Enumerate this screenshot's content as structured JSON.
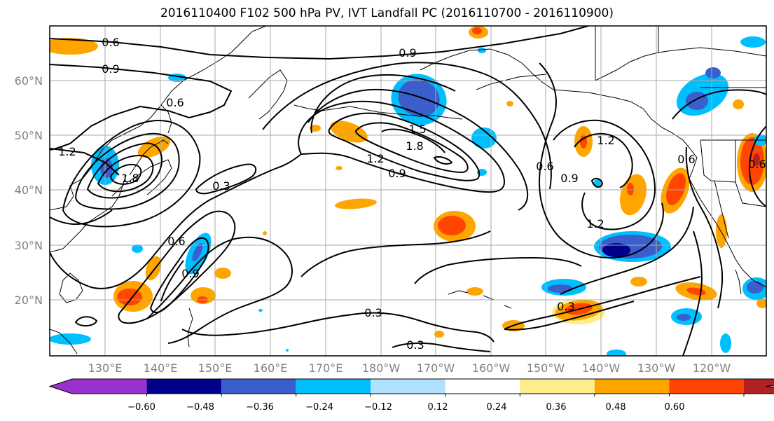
{
  "title": "2016110400 F102 500 hPa PV, IVT Landfall PC (2016110700 - 2016110900)",
  "map": {
    "lat_ticks": [
      "60°N",
      "50°N",
      "40°N",
      "30°N",
      "20°N"
    ],
    "lon_ticks": [
      "130°E",
      "140°E",
      "150°E",
      "160°E",
      "170°E",
      "180°W",
      "170°W",
      "160°W",
      "150°W",
      "140°W",
      "130°W",
      "120°W"
    ],
    "contour_labels": [
      "0.6",
      "0.9",
      "0.9",
      "1.2",
      "1.8",
      "0.3",
      "0.6",
      "0.9",
      "1.5",
      "1.8",
      "1.2",
      "0.9",
      "0.6",
      "0.9",
      "1.2",
      "1.2",
      "0.3",
      "0.3",
      "0.3",
      "0.6",
      "0.6",
      "0.6"
    ]
  },
  "colorbar": {
    "ticks": [
      "−0.60",
      "−0.48",
      "−0.36",
      "−0.24",
      "−0.12",
      "0.12",
      "0.24",
      "0.36",
      "0.48",
      "0.60"
    ],
    "colors": [
      "#9932cc",
      "#00008b",
      "#3a5fcd",
      "#00bfff",
      "#b0e2ff",
      "#ffffff",
      "#ffec8b",
      "#ffa500",
      "#ff4500",
      "#b22222",
      "#ff88aa"
    ]
  }
}
